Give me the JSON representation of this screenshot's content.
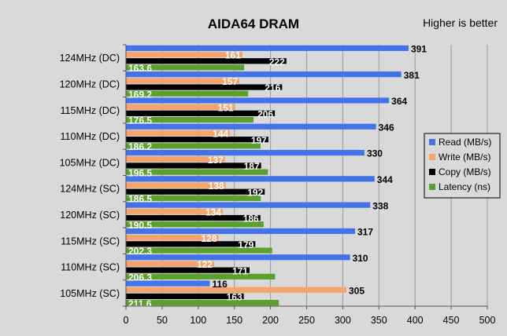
{
  "chart_data": {
    "type": "bar",
    "orientation": "horizontal",
    "title": "AIDA64 DRAM",
    "annotation": "Higher is better",
    "categories": [
      "124MHz (DC)",
      "120MHz (DC)",
      "115MHz (DC)",
      "110MHz (DC)",
      "105MHz (DC)",
      "124MHz (SC)",
      "120MHz (SC)",
      "115MHz (SC)",
      "110MHz (SC)",
      "105MHz (SC)"
    ],
    "series": [
      {
        "name": "Read (MB/s)",
        "color": "#4472e8",
        "values": [
          391,
          381,
          364,
          346,
          330,
          344,
          338,
          317,
          310,
          116
        ]
      },
      {
        "name": "Write (MB/s)",
        "color": "#f4a46c",
        "values": [
          161,
          157,
          151,
          144,
          137,
          138,
          134,
          128,
          122,
          305
        ]
      },
      {
        "name": "Copy (MB/s)",
        "color": "#000000",
        "values": [
          222,
          216,
          206,
          197,
          187,
          192,
          186,
          179,
          171,
          163
        ]
      },
      {
        "name": "Latency (ns)",
        "color": "#5aa02c",
        "values": [
          163.6,
          169.2,
          176.5,
          186.2,
          196.5,
          186.5,
          190.5,
          202.3,
          206.3,
          211.6
        ]
      }
    ],
    "value_labels": [
      [
        "391",
        "381",
        "364",
        "346",
        "330",
        "344",
        "338",
        "317",
        "310",
        "116"
      ],
      [
        "161",
        "157",
        "151",
        "144",
        "137",
        "138",
        "134",
        "128",
        "122",
        "305"
      ],
      [
        "222",
        "216",
        "206",
        "197",
        "187",
        "192",
        "186",
        "179",
        "171",
        "163"
      ],
      [
        "163.6",
        "169.2",
        "176.5",
        "186.2",
        "196.5",
        "186.5",
        "190.5",
        "202.3",
        "206.3",
        "211.6"
      ]
    ],
    "xlim": [
      0,
      500
    ],
    "xticks": [
      0,
      50,
      100,
      150,
      200,
      250,
      300,
      350,
      400,
      450,
      500
    ],
    "xtick_labels": [
      "0",
      "50",
      "100",
      "150",
      "200",
      "250",
      "300",
      "350",
      "400",
      "450",
      "500"
    ],
    "grid": "vertical",
    "legend_position": "right"
  }
}
